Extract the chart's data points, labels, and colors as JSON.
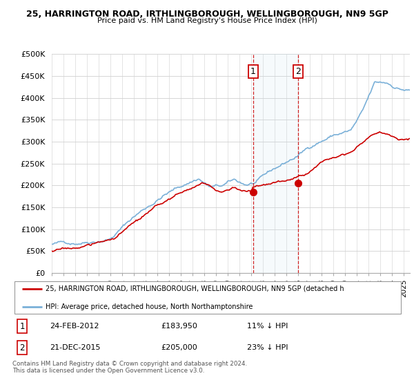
{
  "title_line1": "25, HARRINGTON ROAD, IRTHLINGBOROUGH, WELLINGBOROUGH, NN9 5GP",
  "title_line2": "Price paid vs. HM Land Registry's House Price Index (HPI)",
  "ylabel_ticks": [
    "£0",
    "£50K",
    "£100K",
    "£150K",
    "£200K",
    "£250K",
    "£300K",
    "£350K",
    "£400K",
    "£450K",
    "£500K"
  ],
  "ytick_values": [
    0,
    50000,
    100000,
    150000,
    200000,
    250000,
    300000,
    350000,
    400000,
    450000,
    500000
  ],
  "hpi_color": "#7ab0d8",
  "price_color": "#cc0000",
  "point1_year": 2012.15,
  "point1_value": 183950,
  "point2_year": 2015.97,
  "point2_value": 205000,
  "legend_line1": "25, HARRINGTON ROAD, IRTHLINGBOROUGH, WELLINGBOROUGH, NN9 5GP (detached h",
  "legend_line2": "HPI: Average price, detached house, North Northamptonshire",
  "footer": "Contains HM Land Registry data © Crown copyright and database right 2024.\nThis data is licensed under the Open Government Licence v3.0.",
  "xmin": 1995.0,
  "xmax": 2025.5,
  "ymin": 0,
  "ymax": 500000,
  "shade_x1": 2012.15,
  "shade_x2": 2015.97
}
